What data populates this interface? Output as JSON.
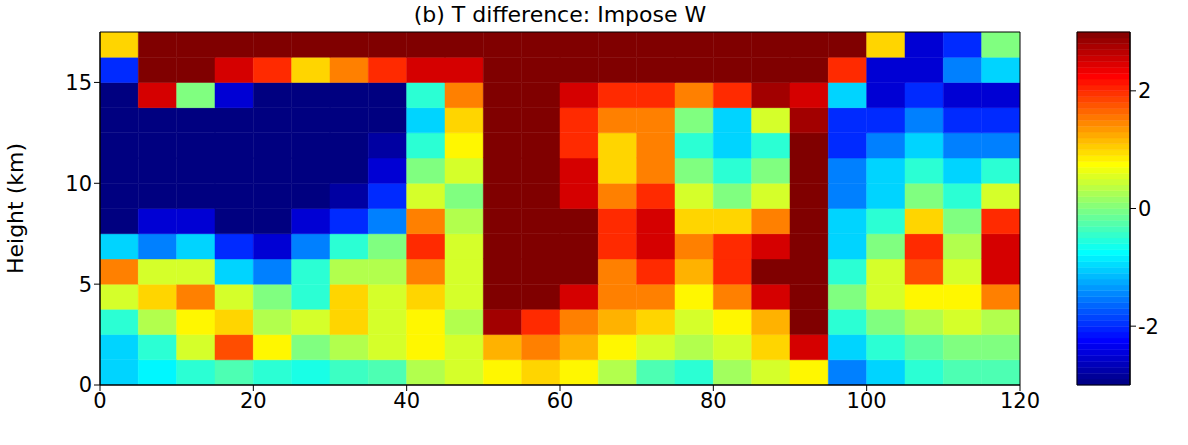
{
  "chart_data": {
    "type": "heatmap",
    "title": "(b) T difference: Impose W",
    "ylabel": "Height (km)",
    "xlim": [
      0,
      120
    ],
    "xticks": [
      0,
      20,
      40,
      60,
      80,
      100,
      120
    ],
    "ylim": [
      0,
      17.5
    ],
    "yticks": [
      0,
      5,
      10,
      15
    ],
    "x_edges": [
      0,
      5,
      10,
      15,
      20,
      25,
      30,
      35,
      40,
      45,
      50,
      55,
      60,
      65,
      70,
      75,
      80,
      85,
      90,
      95,
      100,
      105,
      110,
      115,
      120
    ],
    "y_edges": [
      0,
      1.25,
      2.5,
      3.75,
      5,
      6.25,
      7.5,
      8.75,
      10,
      11.25,
      12.5,
      13.75,
      15,
      16.25,
      17.5
    ],
    "cells": [
      [
        -1,
        -0.8,
        -0.5,
        -0.3,
        -0.5,
        -0.6,
        -0.4,
        -0.3,
        0.3,
        0.5,
        0.8,
        1,
        0.8,
        0.3,
        -0.3,
        -0.5,
        0.2,
        0.5,
        0.8,
        -1.5,
        -1,
        -0.5,
        -0.3,
        -0.3
      ],
      [
        -1,
        -0.5,
        0.5,
        1.8,
        0.8,
        0,
        0.3,
        0.5,
        0.8,
        0.5,
        1.2,
        1.5,
        1.2,
        0.8,
        0.5,
        0.3,
        0.5,
        1,
        2.5,
        -1,
        -0.5,
        -0.2,
        0,
        0
      ],
      [
        -0.5,
        0.3,
        0.8,
        1,
        0.3,
        0.5,
        1,
        0.5,
        0.8,
        0.3,
        2.8,
        2,
        1.5,
        1.2,
        1,
        0.5,
        0.8,
        1.2,
        3,
        -0.5,
        0,
        0.3,
        0.5,
        0.3
      ],
      [
        0.5,
        1,
        1.5,
        0.5,
        0,
        -0.5,
        1,
        0.5,
        1,
        0.5,
        3,
        3,
        2.5,
        1.5,
        1.5,
        0.8,
        1.5,
        2.5,
        3,
        0,
        0.5,
        0.8,
        0.8,
        1.5
      ],
      [
        1.5,
        0.5,
        0.5,
        -1,
        -1.5,
        -0.5,
        0.3,
        0.3,
        1.5,
        0.5,
        3,
        3,
        3,
        1.5,
        2,
        1.2,
        2,
        3,
        3,
        -0.5,
        0.5,
        1.8,
        0.5,
        2.5
      ],
      [
        -1,
        -1.5,
        -1,
        -2,
        -2.5,
        -1.5,
        -0.5,
        0,
        2,
        0.5,
        3,
        3,
        3,
        2,
        2.5,
        1.5,
        2,
        2.5,
        3,
        -1,
        0,
        2,
        0.3,
        2.5
      ],
      [
        -3,
        -2.5,
        -2.5,
        -3,
        -3,
        -2.5,
        -2,
        -1.5,
        1.5,
        0.3,
        3,
        3,
        3,
        2,
        2.5,
        1,
        1,
        1.5,
        3,
        -1,
        -0.5,
        1,
        0,
        2
      ],
      [
        -3,
        -3,
        -3,
        -3,
        -3,
        -3,
        -2.8,
        -2,
        0.5,
        0,
        3,
        3,
        2.5,
        1.5,
        2,
        0.5,
        0,
        0.5,
        3,
        -1.5,
        -1,
        0,
        -0.5,
        0.5
      ],
      [
        -3,
        -3,
        -3,
        -3,
        -3,
        -3,
        -3,
        -2.5,
        0,
        0.5,
        3,
        3,
        2.5,
        1,
        1.5,
        0,
        -0.5,
        0,
        3,
        -1.5,
        -1,
        -0.5,
        -1,
        -0.5
      ],
      [
        -3,
        -3,
        -3,
        -3,
        -3,
        -3,
        -3,
        -2.8,
        -0.5,
        0.8,
        3,
        3,
        2,
        1,
        1.5,
        -0.5,
        -1,
        -0.5,
        3,
        -2,
        -1.5,
        -1,
        -1.5,
        -1.5
      ],
      [
        -3,
        -3,
        -3,
        -3,
        -3,
        -3,
        -3,
        -3,
        -1,
        1,
        3,
        3,
        2,
        1.5,
        1.5,
        0,
        -1,
        0.5,
        2.8,
        -2,
        -2,
        -1.5,
        -2,
        -2
      ],
      [
        -3,
        2.5,
        0,
        -2.5,
        -3,
        -3,
        -3,
        -3,
        -0.5,
        1.5,
        3,
        3,
        2.5,
        2,
        2,
        1.5,
        2,
        2.8,
        2.5,
        -1,
        -2.5,
        -2,
        -2.5,
        -2.5
      ],
      [
        -2,
        3,
        3,
        2.5,
        2,
        1,
        1.5,
        2,
        2.5,
        2.5,
        3,
        3,
        3,
        3,
        3,
        3,
        3,
        3,
        3,
        2,
        -2.5,
        -2.5,
        -1.5,
        -1
      ],
      [
        1,
        3,
        3,
        3,
        3,
        3,
        3,
        3,
        3,
        3,
        3,
        3,
        3,
        3,
        3,
        3,
        3,
        3,
        3,
        3,
        1,
        -2.5,
        -2,
        0
      ]
    ],
    "colorbar": {
      "range": [
        -3,
        3
      ],
      "ticks": [
        -2,
        0,
        2
      ]
    }
  }
}
